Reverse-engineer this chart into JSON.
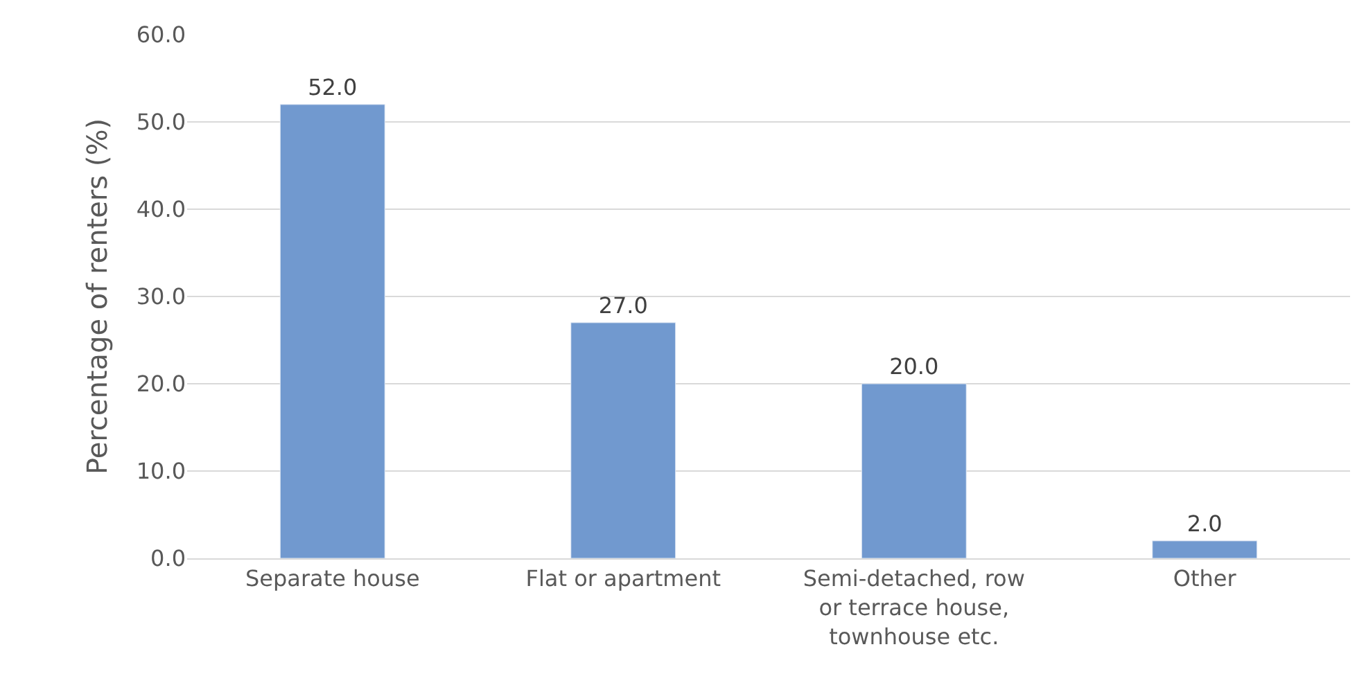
{
  "chart_data": {
    "type": "bar",
    "ylabel": "Percentage of renters (%)",
    "categories": [
      "Separate house",
      "Flat or apartment",
      "Semi-detached, row or terrace house, townhouse etc.",
      "Other"
    ],
    "values": [
      52,
      27,
      20,
      2
    ],
    "value_labels": [
      "52.0",
      "27.0",
      "20.0",
      "2.0"
    ],
    "color": "#7199cf",
    "ylim": [
      0,
      60
    ],
    "yticks": [
      {
        "value": 0,
        "label": "0.0"
      },
      {
        "value": 10,
        "label": "10.0"
      },
      {
        "value": 20,
        "label": "20.0"
      },
      {
        "value": 30,
        "label": "30.0"
      },
      {
        "value": 40,
        "label": "40.0"
      },
      {
        "value": 50,
        "label": "50.0"
      },
      {
        "value": 60,
        "label": "60.0"
      }
    ],
    "grid": "y",
    "legend": false
  }
}
